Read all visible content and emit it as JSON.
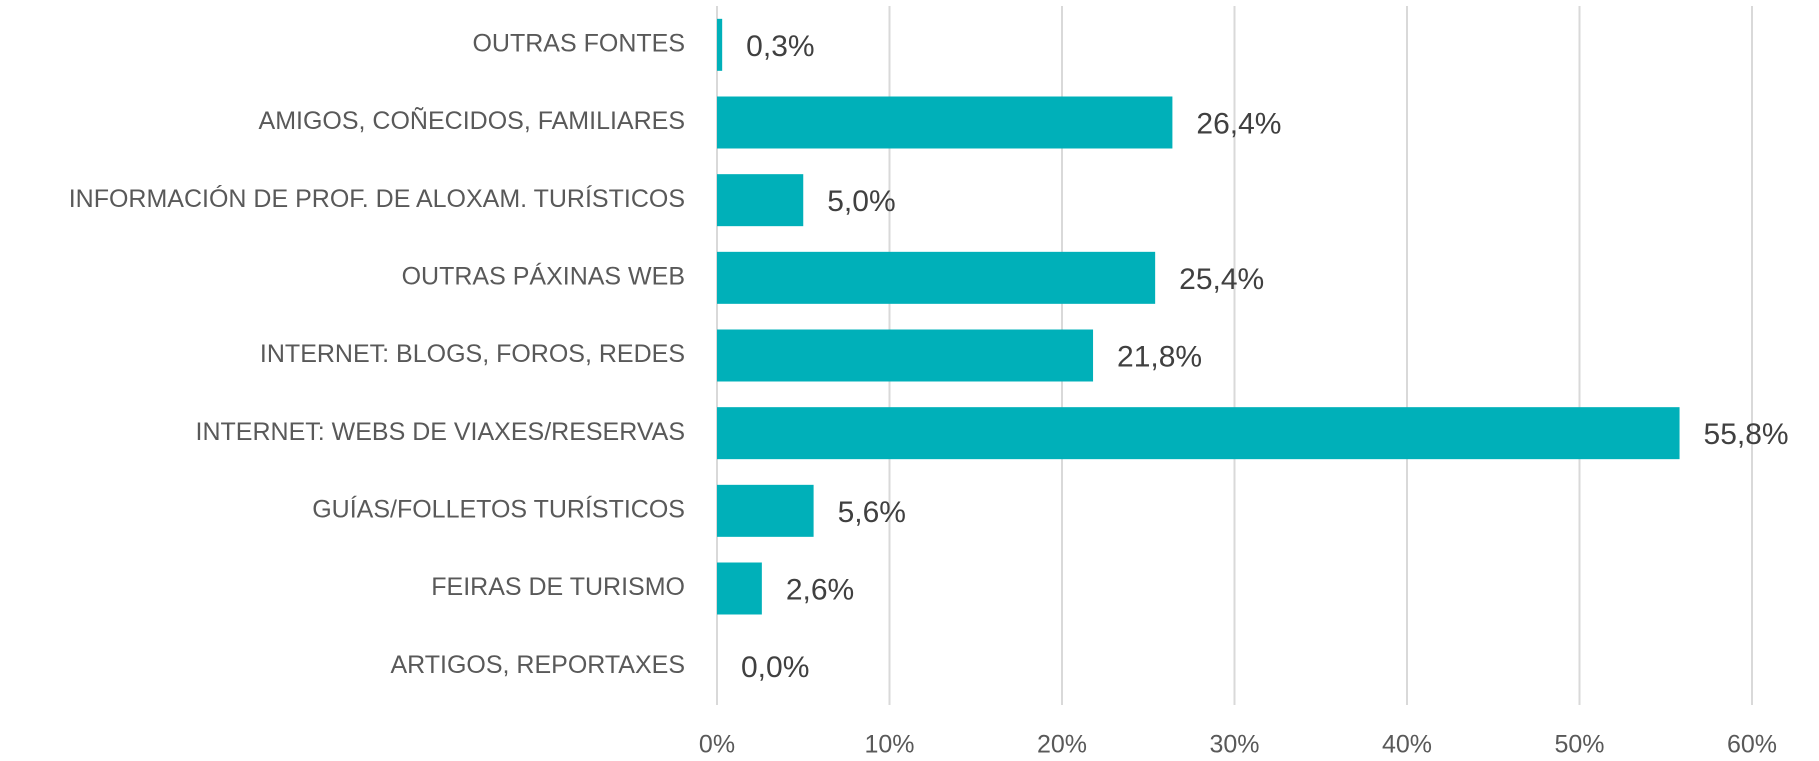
{
  "chart_data": {
    "type": "barh",
    "categories": [
      "OUTRAS FONTES",
      "AMIGOS, COÑECIDOS, FAMILIARES",
      "INFORMACIÓN DE PROF. DE ALOXAM. TURÍSTICOS",
      "OUTRAS PÁXINAS WEB",
      "INTERNET: BLOGS, FOROS, REDES",
      "INTERNET: WEBS DE VIAXES/RESERVAS",
      "GUÍAS/FOLLETOS TURÍSTICOS",
      "FEIRAS DE TURISMO",
      "ARTIGOS, REPORTAXES"
    ],
    "values": [
      0.3,
      26.4,
      5.0,
      25.4,
      21.8,
      55.8,
      5.6,
      2.6,
      0.0
    ],
    "value_labels": [
      "0,3%",
      "26,4%",
      "5,0%",
      "25,4%",
      "21,8%",
      "55,8%",
      "5,6%",
      "2,6%",
      "0,0%"
    ],
    "color": "#00b0b9",
    "xlim": [
      0,
      60
    ],
    "xticks": [
      {
        "value": 0,
        "label": "0%"
      },
      {
        "value": 10,
        "label": "10%"
      },
      {
        "value": 20,
        "label": "20%"
      },
      {
        "value": 30,
        "label": "30%"
      },
      {
        "value": 40,
        "label": "40%"
      },
      {
        "value": 50,
        "label": "50%"
      },
      {
        "value": 60,
        "label": "60%"
      }
    ],
    "grid": true
  }
}
